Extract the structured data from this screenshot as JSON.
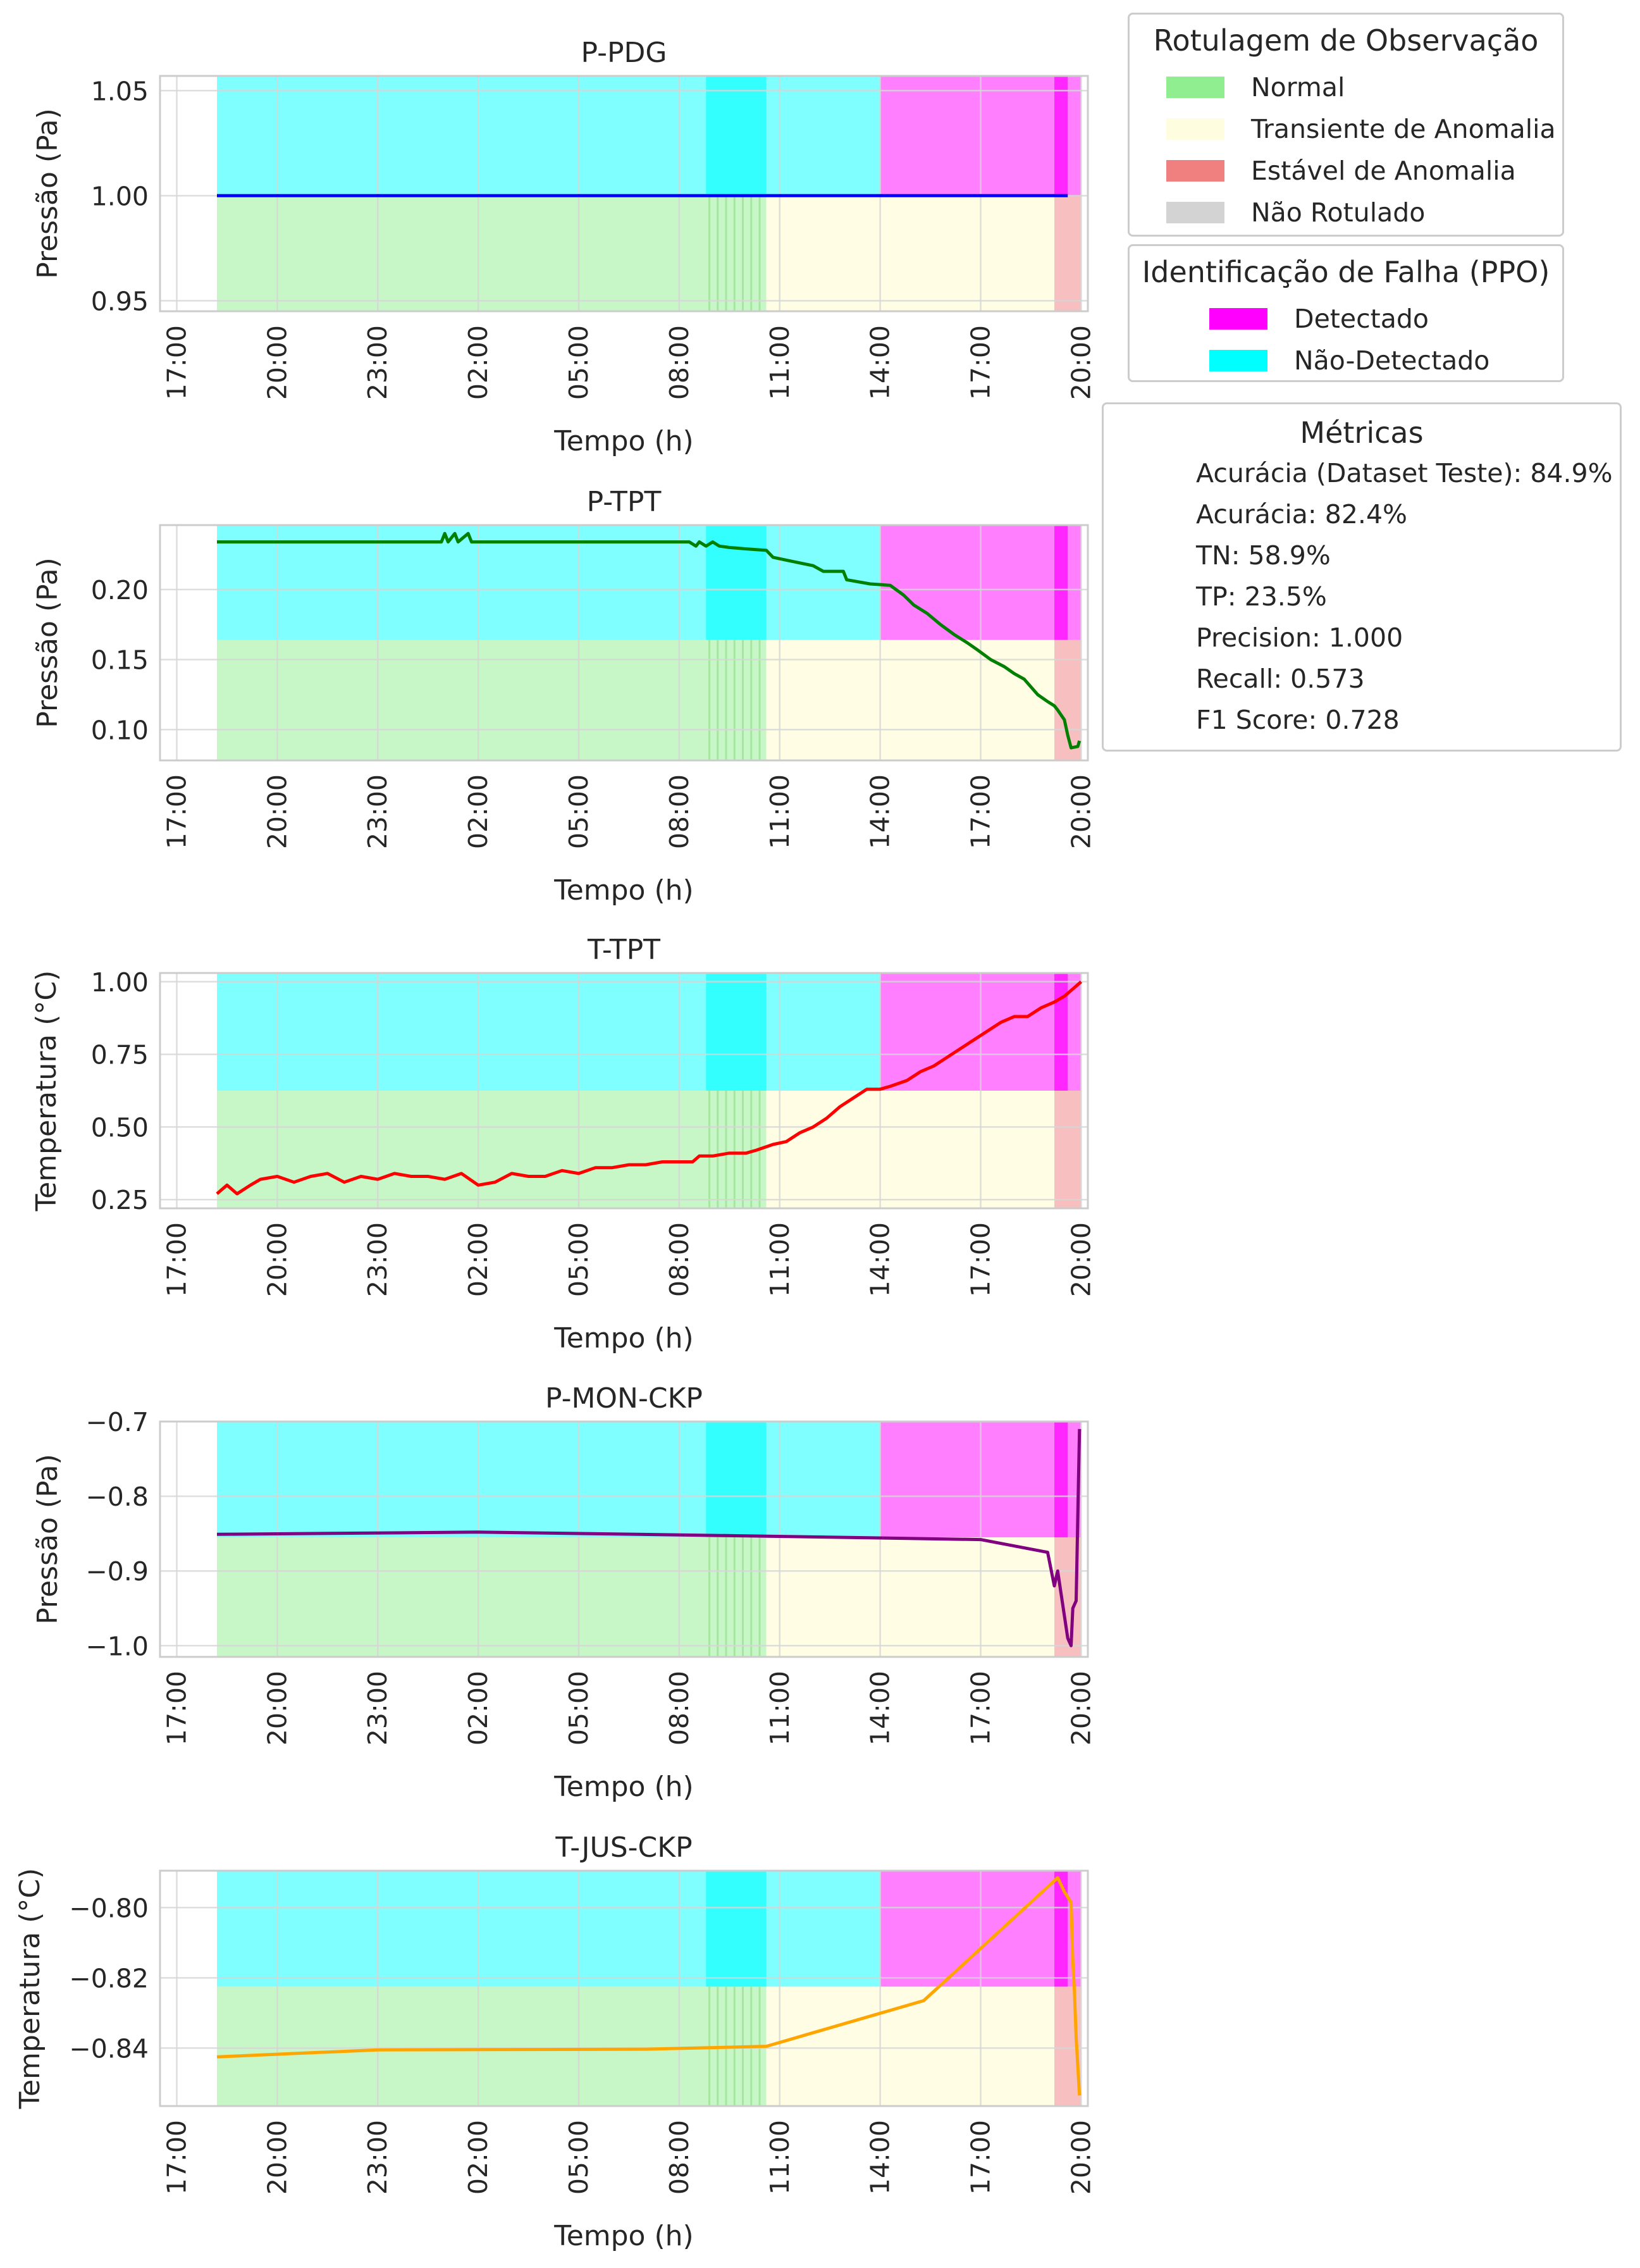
{
  "time_axis": {
    "label": "Tempo (h)",
    "ticks": [
      "17:00",
      "20:00",
      "23:00",
      "02:00",
      "05:00",
      "08:00",
      "11:00",
      "14:00",
      "17:00",
      "20:00"
    ]
  },
  "colors": {
    "normal": "#90ee90",
    "transient": "#fffde0",
    "stable": "#f08080",
    "unlabeled": "#d3d3d3",
    "detected": "#ff00ff",
    "not_detected": "#00ffff"
  },
  "observation_legend": {
    "title": "Rotulagem de Observação",
    "items": [
      {
        "label": "Normal",
        "color": "#90ee90"
      },
      {
        "label": "Transiente de Anomalia",
        "color": "#fffde0"
      },
      {
        "label": "Estável de Anomalia",
        "color": "#f08080"
      },
      {
        "label": "Não Rotulado",
        "color": "#d3d3d3"
      }
    ]
  },
  "fault_legend": {
    "title": "Identificação de Falha (PPO)",
    "items": [
      {
        "label": "Detectado",
        "color": "#ff00ff"
      },
      {
        "label": "Não-Detectado",
        "color": "#00ffff"
      }
    ]
  },
  "metrics": {
    "title": "Métricas",
    "lines": [
      "Acurácia (Dataset Teste): 84.9%",
      "Acurácia: 82.4%",
      "TN: 58.9%",
      "TP: 23.5%",
      "Precision: 1.000",
      "Recall: 0.573",
      "F1 Score: 0.728"
    ]
  },
  "chart_data": [
    {
      "type": "line",
      "title": "P-PDG",
      "xlabel": "Tempo (h)",
      "ylabel": "Pressão (Pa)",
      "xlim": [
        16.5,
        44.2
      ],
      "ylim": [
        0.945,
        1.057
      ],
      "yticks": [
        0.95,
        1.0,
        1.05
      ],
      "ytick_labels": [
        "0.95",
        "1.00",
        "1.05"
      ],
      "color": "#0000ff",
      "points": [
        [
          18.2,
          1.0
        ],
        [
          43.6,
          1.0
        ]
      ],
      "band_split": 1.0
    },
    {
      "type": "line",
      "title": "P-TPT",
      "xlabel": "Tempo (h)",
      "ylabel": "Pressão (Pa)",
      "xlim": [
        16.5,
        44.2
      ],
      "ylim": [
        0.078,
        0.246
      ],
      "yticks": [
        0.1,
        0.15,
        0.2
      ],
      "ytick_labels": [
        "0.10",
        "0.15",
        "0.20"
      ],
      "color": "#008000",
      "points": [
        [
          18.2,
          0.234
        ],
        [
          24.9,
          0.234
        ],
        [
          25.0,
          0.24
        ],
        [
          25.1,
          0.234
        ],
        [
          25.3,
          0.24
        ],
        [
          25.4,
          0.234
        ],
        [
          25.7,
          0.24
        ],
        [
          25.8,
          0.234
        ],
        [
          32.3,
          0.234
        ],
        [
          32.5,
          0.231
        ],
        [
          32.6,
          0.234
        ],
        [
          32.8,
          0.231
        ],
        [
          33.0,
          0.234
        ],
        [
          33.2,
          0.231
        ],
        [
          33.5,
          0.23
        ],
        [
          34.0,
          0.229
        ],
        [
          34.6,
          0.228
        ],
        [
          34.8,
          0.223
        ],
        [
          35.2,
          0.221
        ],
        [
          35.6,
          0.219
        ],
        [
          36.0,
          0.217
        ],
        [
          36.3,
          0.213
        ],
        [
          36.9,
          0.213
        ],
        [
          37.0,
          0.207
        ],
        [
          37.7,
          0.204
        ],
        [
          38.3,
          0.203
        ],
        [
          38.7,
          0.196
        ],
        [
          39.0,
          0.189
        ],
        [
          39.4,
          0.183
        ],
        [
          39.8,
          0.175
        ],
        [
          40.2,
          0.168
        ],
        [
          40.6,
          0.162
        ],
        [
          40.9,
          0.157
        ],
        [
          41.3,
          0.15
        ],
        [
          41.7,
          0.145
        ],
        [
          42.0,
          0.14
        ],
        [
          42.3,
          0.136
        ],
        [
          42.7,
          0.125
        ],
        [
          43.0,
          0.12
        ],
        [
          43.2,
          0.117
        ],
        [
          43.3,
          0.114
        ],
        [
          43.5,
          0.107
        ],
        [
          43.6,
          0.096
        ],
        [
          43.7,
          0.087
        ],
        [
          43.9,
          0.088
        ],
        [
          43.95,
          0.092
        ]
      ],
      "band_split": 0.164
    },
    {
      "type": "line",
      "title": "T-TPT",
      "xlabel": "Tempo (h)",
      "ylabel": "Temperatura (°C)",
      "xlim": [
        16.5,
        44.2
      ],
      "ylim": [
        0.22,
        1.03
      ],
      "yticks": [
        0.25,
        0.5,
        0.75,
        1.0
      ],
      "ytick_labels": [
        "0.25",
        "0.50",
        "0.75",
        "1.00"
      ],
      "color": "#ff0000",
      "points": [
        [
          18.2,
          0.27
        ],
        [
          18.5,
          0.3
        ],
        [
          18.8,
          0.27
        ],
        [
          19.2,
          0.3
        ],
        [
          19.5,
          0.32
        ],
        [
          20.0,
          0.33
        ],
        [
          20.5,
          0.31
        ],
        [
          21.0,
          0.33
        ],
        [
          21.5,
          0.34
        ],
        [
          22.0,
          0.31
        ],
        [
          22.5,
          0.33
        ],
        [
          23.0,
          0.32
        ],
        [
          23.5,
          0.34
        ],
        [
          24.0,
          0.33
        ],
        [
          24.5,
          0.33
        ],
        [
          25.0,
          0.32
        ],
        [
          25.5,
          0.34
        ],
        [
          26.0,
          0.3
        ],
        [
          26.5,
          0.31
        ],
        [
          27.0,
          0.34
        ],
        [
          27.5,
          0.33
        ],
        [
          28.0,
          0.33
        ],
        [
          28.5,
          0.35
        ],
        [
          29.0,
          0.34
        ],
        [
          29.5,
          0.36
        ],
        [
          30.0,
          0.36
        ],
        [
          30.5,
          0.37
        ],
        [
          31.0,
          0.37
        ],
        [
          31.5,
          0.38
        ],
        [
          32.0,
          0.38
        ],
        [
          32.4,
          0.38
        ],
        [
          32.6,
          0.4
        ],
        [
          33.0,
          0.4
        ],
        [
          33.5,
          0.41
        ],
        [
          34.0,
          0.41
        ],
        [
          34.3,
          0.42
        ],
        [
          34.8,
          0.44
        ],
        [
          35.2,
          0.45
        ],
        [
          35.6,
          0.48
        ],
        [
          36.0,
          0.5
        ],
        [
          36.4,
          0.53
        ],
        [
          36.8,
          0.57
        ],
        [
          37.2,
          0.6
        ],
        [
          37.6,
          0.63
        ],
        [
          38.0,
          0.63
        ],
        [
          38.3,
          0.64
        ],
        [
          38.8,
          0.66
        ],
        [
          39.2,
          0.69
        ],
        [
          39.6,
          0.71
        ],
        [
          40.0,
          0.74
        ],
        [
          40.4,
          0.77
        ],
        [
          40.8,
          0.8
        ],
        [
          41.2,
          0.83
        ],
        [
          41.6,
          0.86
        ],
        [
          42.0,
          0.88
        ],
        [
          42.4,
          0.88
        ],
        [
          42.8,
          0.91
        ],
        [
          43.2,
          0.93
        ],
        [
          43.5,
          0.95
        ],
        [
          43.8,
          0.98
        ],
        [
          44.0,
          1.0
        ]
      ],
      "band_split": 0.625
    },
    {
      "type": "line",
      "title": "P-MON-CKP",
      "xlabel": "Tempo (h)",
      "ylabel": "Pressão (Pa)",
      "xlim": [
        16.5,
        44.2
      ],
      "ylim": [
        -1.015,
        -0.7
      ],
      "yticks": [
        -1.0,
        -0.9,
        -0.8,
        -0.7
      ],
      "ytick_labels": [
        "−1.0",
        "−0.9",
        "−0.8",
        "−0.7"
      ],
      "color": "#800080",
      "points": [
        [
          18.2,
          -0.851
        ],
        [
          26.0,
          -0.848
        ],
        [
          34.0,
          -0.853
        ],
        [
          41.0,
          -0.858
        ],
        [
          43.0,
          -0.875
        ],
        [
          43.2,
          -0.92
        ],
        [
          43.3,
          -0.9
        ],
        [
          43.4,
          -0.93
        ],
        [
          43.5,
          -0.96
        ],
        [
          43.6,
          -0.99
        ],
        [
          43.7,
          -1.0
        ],
        [
          43.75,
          -0.95
        ],
        [
          43.85,
          -0.94
        ],
        [
          43.95,
          -0.71
        ]
      ],
      "band_split": -0.855
    },
    {
      "type": "line",
      "title": "T-JUS-CKP",
      "xlabel": "Tempo (h)",
      "ylabel": "Temperatura (°C)",
      "xlim": [
        16.5,
        44.2
      ],
      "ylim": [
        -0.8565,
        -0.7895
      ],
      "yticks": [
        -0.84,
        -0.82,
        -0.8
      ],
      "ytick_labels": [
        "−0.84",
        "−0.82",
        "−0.80"
      ],
      "color": "#ffa500",
      "points": [
        [
          18.2,
          -0.8425
        ],
        [
          23.0,
          -0.8405
        ],
        [
          31.0,
          -0.8403
        ],
        [
          34.6,
          -0.8395
        ],
        [
          39.3,
          -0.8265
        ],
        [
          43.3,
          -0.7915
        ],
        [
          43.5,
          -0.7955
        ],
        [
          43.7,
          -0.7985
        ],
        [
          43.75,
          -0.815
        ],
        [
          43.8,
          -0.824
        ],
        [
          43.85,
          -0.837
        ],
        [
          43.95,
          -0.8535
        ]
      ],
      "band_split": -0.8225
    }
  ],
  "segments": [
    {
      "start": 18.2,
      "end": 32.8,
      "label": "normal",
      "fault": "not_detected"
    },
    {
      "start": 32.8,
      "end": 34.6,
      "label": "normal",
      "fault": "not_detected"
    },
    {
      "start": 34.6,
      "end": 38.0,
      "label": "transient",
      "fault": "not_detected"
    },
    {
      "start": 38.0,
      "end": 43.2,
      "label": "transient",
      "fault": "detected"
    },
    {
      "start": 43.2,
      "end": 44.0,
      "label": "stable",
      "fault": "detected"
    }
  ]
}
